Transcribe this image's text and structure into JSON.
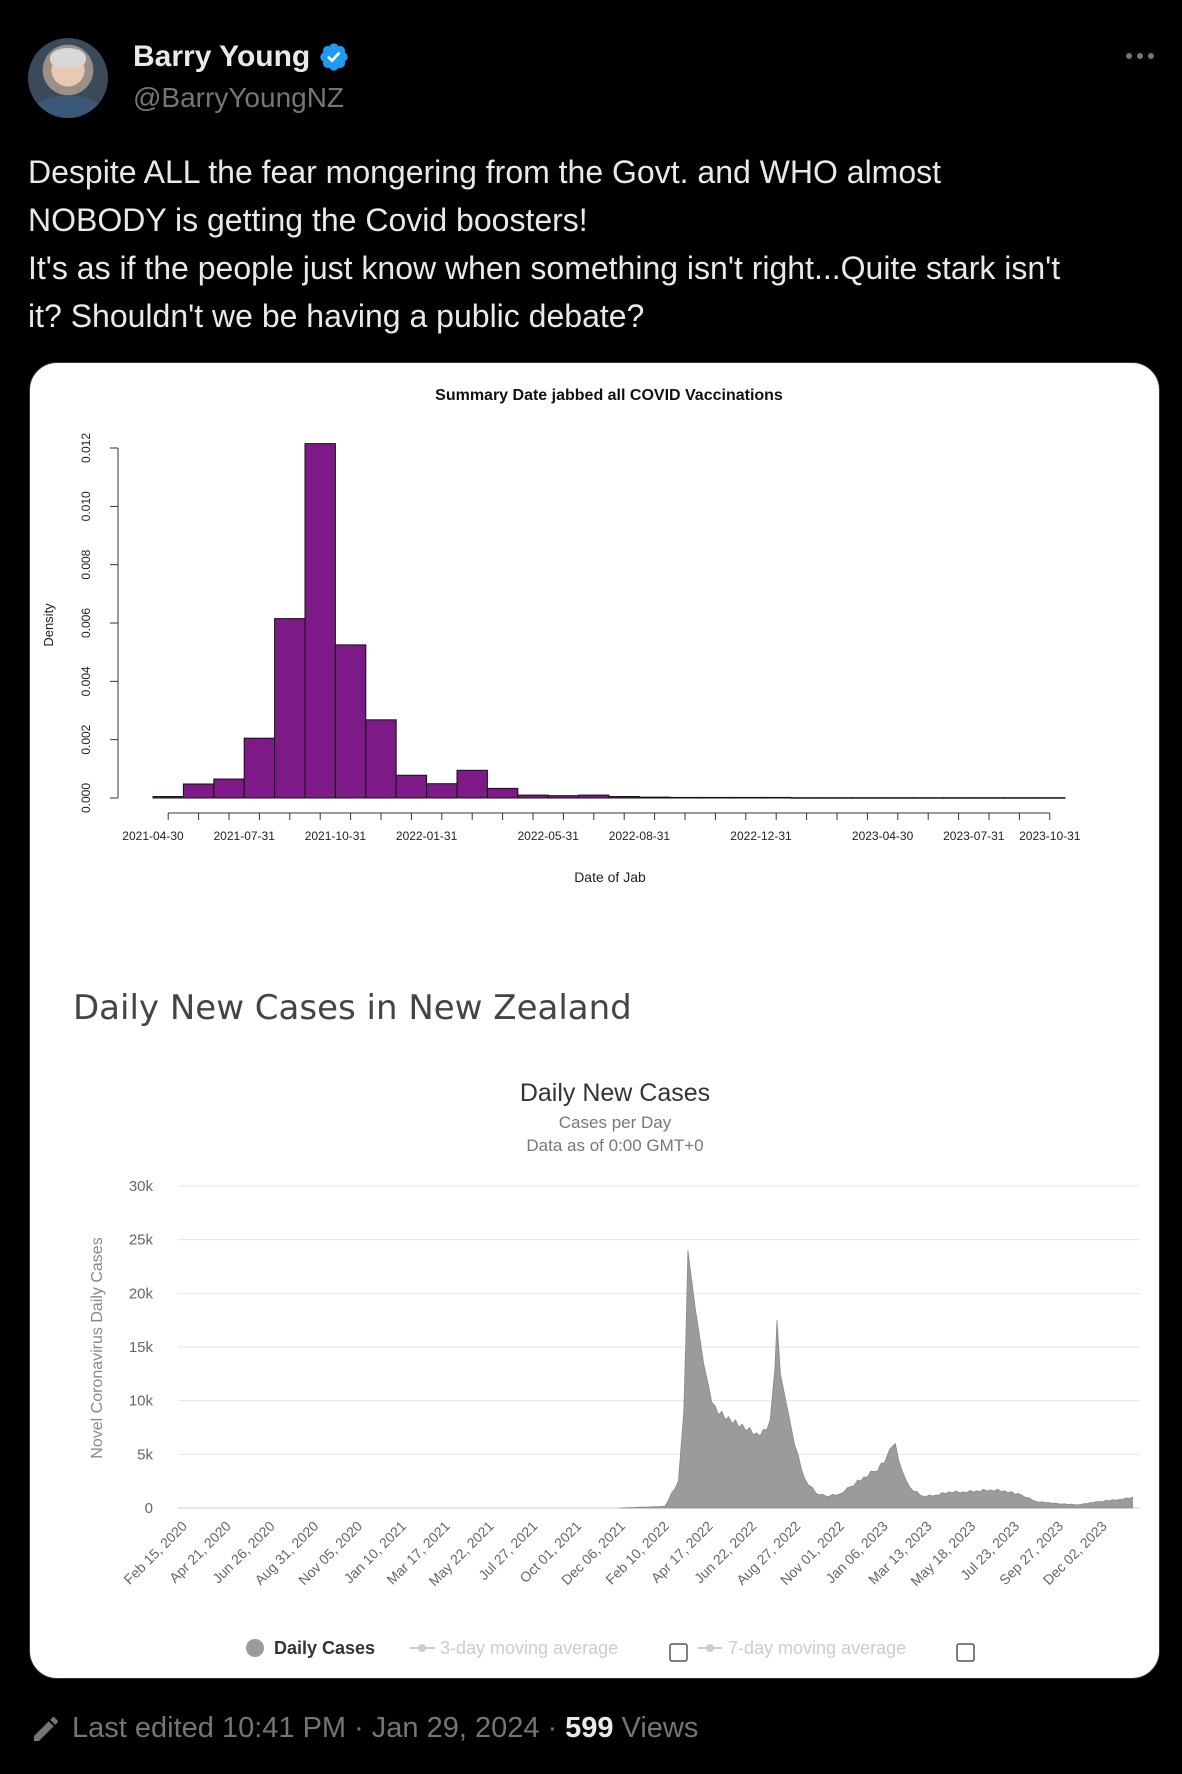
{
  "author": {
    "display_name": "Barry Young",
    "handle": "@BarryYoungNZ",
    "verified_color": "#1d9bf0"
  },
  "tweet": {
    "lines": [
      "Despite ALL the fear mongering from the Govt. and WHO almost",
      "NOBODY is getting the Covid boosters!",
      "It's as if the people just know when something isn't right...Quite stark isn't",
      "it?  Shouldn't we be having a public debate?"
    ]
  },
  "footer": {
    "edited_label": "Last edited",
    "time": "10:41 PM",
    "date": "Jan 29, 2024",
    "views_count": "599",
    "views_label": "Views"
  },
  "chart_data": [
    {
      "type": "bar",
      "title": "Summary Date jabbed all COVID Vaccinations",
      "xlabel": "Date of Jab",
      "ylabel": "Density",
      "yticks": [
        "0.000",
        "0.002",
        "0.004",
        "0.006",
        "0.008",
        "0.010",
        "0.012"
      ],
      "ylim": [
        0,
        0.012
      ],
      "xtick_labels": [
        "2021-04-30",
        "2021-07-31",
        "2021-10-31",
        "2022-01-31",
        "2022-05-31",
        "2022-08-31",
        "2022-12-31",
        "2023-04-30",
        "2023-07-31",
        "2023-10-31"
      ],
      "bar_color": "#7d1a87",
      "values": [
        5e-05,
        0.00048,
        0.00065,
        0.00205,
        0.00615,
        0.01215,
        0.00525,
        0.00268,
        0.00078,
        0.00049,
        0.00095,
        0.00033,
        0.0001,
        8e-05,
        0.0001,
        5e-05,
        3e-05,
        2e-05,
        2e-05,
        2e-05,
        2e-05,
        1e-05,
        1e-05,
        1e-05,
        1e-05,
        1e-05,
        1e-05,
        1e-05,
        1e-05,
        1e-05
      ]
    },
    {
      "type": "area",
      "heading": "Daily New Cases in New Zealand",
      "title": "Daily New Cases",
      "subtitle": "Cases per Day",
      "subtitle2": "Data as of 0:00 GMT+0",
      "ylabel": "Novel Coronavirus Daily Cases",
      "yticks": [
        "0",
        "5k",
        "10k",
        "15k",
        "20k",
        "25k",
        "30k"
      ],
      "ylim": [
        0,
        30000
      ],
      "xtick_labels": [
        "Feb 15, 2020",
        "Apr 21, 2020",
        "Jun 26, 2020",
        "Aug 31, 2020",
        "Nov 05, 2020",
        "Jan 10, 2021",
        "Mar 17, 2021",
        "May 22, 2021",
        "Jul 27, 2021",
        "Oct 01, 2021",
        "Dec 06, 2021",
        "Feb 10, 2022",
        "Apr 17, 2022",
        "Jun 22, 2022",
        "Aug 27, 2022",
        "Nov 01, 2022",
        "Jan 06, 2023",
        "Mar 13, 2023",
        "May 18, 2023",
        "Jul 23, 2023",
        "Sep 27, 2023",
        "Dec 02, 2023"
      ],
      "fill_color": "#9b9b9b",
      "x": [
        "2021-11-25",
        "2022-01-31",
        "2022-02-20",
        "2022-02-28",
        "2022-03-03",
        "2022-03-06",
        "2022-03-09",
        "2022-03-12",
        "2022-03-17",
        "2022-03-22",
        "2022-03-29",
        "2022-04-05",
        "2022-04-15",
        "2022-04-25",
        "2022-05-05",
        "2022-05-15",
        "2022-05-25",
        "2022-06-05",
        "2022-06-15",
        "2022-06-25",
        "2022-07-05",
        "2022-07-12",
        "2022-07-15",
        "2022-07-20",
        "2022-07-28",
        "2022-08-05",
        "2022-08-15",
        "2022-08-25",
        "2022-09-10",
        "2022-09-25",
        "2022-10-15",
        "2022-11-01",
        "2022-11-20",
        "2022-12-05",
        "2022-12-20",
        "2022-12-28",
        "2023-01-05",
        "2023-01-15",
        "2023-01-28",
        "2023-02-15",
        "2023-03-05",
        "2023-03-25",
        "2023-04-15",
        "2023-05-05",
        "2023-05-25",
        "2023-06-15",
        "2023-07-10",
        "2023-08-01",
        "2023-09-01",
        "2023-10-01",
        "2023-11-01",
        "2023-12-01",
        "2023-12-20"
      ],
      "values": [
        0,
        150,
        2500,
        9000,
        16000,
        24000,
        22500,
        21000,
        18500,
        16500,
        13500,
        11500,
        9500,
        9000,
        8500,
        8200,
        7800,
        7500,
        7000,
        7300,
        8200,
        13000,
        17500,
        12500,
        10000,
        7500,
        5000,
        2700,
        1400,
        1100,
        1300,
        2000,
        2900,
        3400,
        4200,
        5500,
        6000,
        3500,
        1800,
        1100,
        1200,
        1500,
        1500,
        1600,
        1700,
        1600,
        1200,
        600,
        400,
        300,
        600,
        800,
        1000
      ],
      "legend": [
        "Daily Cases",
        "3-day moving average",
        "7-day moving average"
      ],
      "legend_placement": "bottom"
    }
  ]
}
